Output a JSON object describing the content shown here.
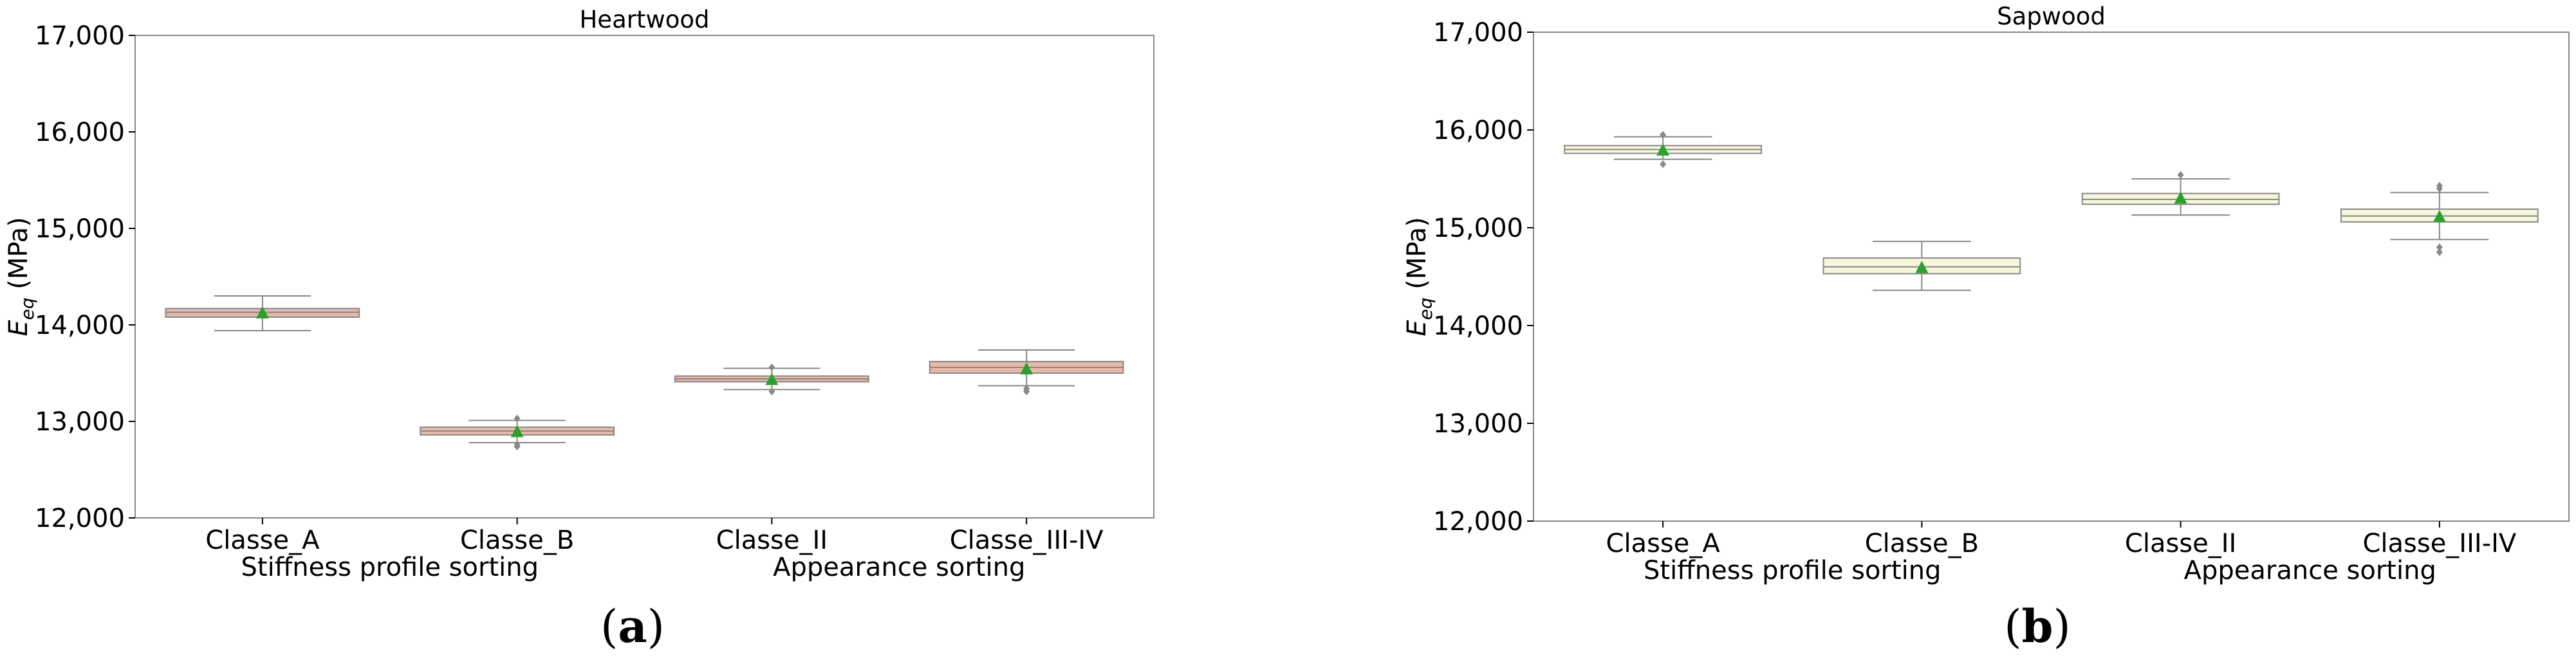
{
  "chart_data": [
    {
      "type": "box",
      "title": "Heartwood",
      "ylabel_main": "E",
      "ylabel_sub": "eq",
      "ylabel_unit": " (MPa)",
      "ylim": [
        12000,
        17000
      ],
      "yticks": [
        12000,
        13000,
        14000,
        15000,
        16000,
        17000
      ],
      "ytick_labels": [
        "12,000",
        "13,000",
        "14,000",
        "15,000",
        "16,000",
        "17,000"
      ],
      "categories": [
        "Classe_A",
        "Classe_B",
        "Classe_II",
        "Classe_III-IV"
      ],
      "groups": [
        "Stiffness profile sorting",
        "Appearance sorting"
      ],
      "box_color": "#e8b9a8",
      "boxes": [
        {
          "whisker_low": 13940,
          "q1": 14080,
          "median": 14130,
          "q3": 14170,
          "whisker_high": 14300,
          "mean": 14120,
          "outliers": []
        },
        {
          "whisker_low": 12780,
          "q1": 12860,
          "median": 12900,
          "q3": 12940,
          "whisker_high": 13010,
          "mean": 12890,
          "outliers": [
            12740,
            12760,
            13030
          ]
        },
        {
          "whisker_low": 13330,
          "q1": 13410,
          "median": 13440,
          "q3": 13470,
          "whisker_high": 13550,
          "mean": 13430,
          "outliers": [
            13310,
            13560
          ]
        },
        {
          "whisker_low": 13370,
          "q1": 13500,
          "median": 13560,
          "q3": 13620,
          "whisker_high": 13740,
          "mean": 13540,
          "outliers": [
            13310,
            13340
          ]
        }
      ],
      "panel_label": "a"
    },
    {
      "type": "box",
      "title": "Sapwood",
      "ylabel_main": "E",
      "ylabel_sub": "eq",
      "ylabel_unit": " (MPa)",
      "ylim": [
        12000,
        17000
      ],
      "yticks": [
        12000,
        13000,
        14000,
        15000,
        16000,
        17000
      ],
      "ytick_labels": [
        "12,000",
        "13,000",
        "14,000",
        "15,000",
        "16,000",
        "17,000"
      ],
      "categories": [
        "Classe_A",
        "Classe_B",
        "Classe_II",
        "Classe_III-IV"
      ],
      "groups": [
        "Stiffness profile sorting",
        "Appearance sorting"
      ],
      "box_color": "#f7f7dc",
      "boxes": [
        {
          "whisker_low": 15700,
          "q1": 15760,
          "median": 15800,
          "q3": 15840,
          "whisker_high": 15930,
          "mean": 15790,
          "outliers": [
            15650,
            15950
          ]
        },
        {
          "whisker_low": 14360,
          "q1": 14530,
          "median": 14600,
          "q3": 14690,
          "whisker_high": 14860,
          "mean": 14590,
          "outliers": []
        },
        {
          "whisker_low": 15130,
          "q1": 15240,
          "median": 15290,
          "q3": 15350,
          "whisker_high": 15500,
          "mean": 15300,
          "outliers": [
            15540
          ]
        },
        {
          "whisker_low": 14880,
          "q1": 15060,
          "median": 15120,
          "q3": 15190,
          "whisker_high": 15360,
          "mean": 15110,
          "outliers": [
            14750,
            14800,
            15400,
            15430
          ]
        }
      ],
      "panel_label": "b"
    }
  ]
}
